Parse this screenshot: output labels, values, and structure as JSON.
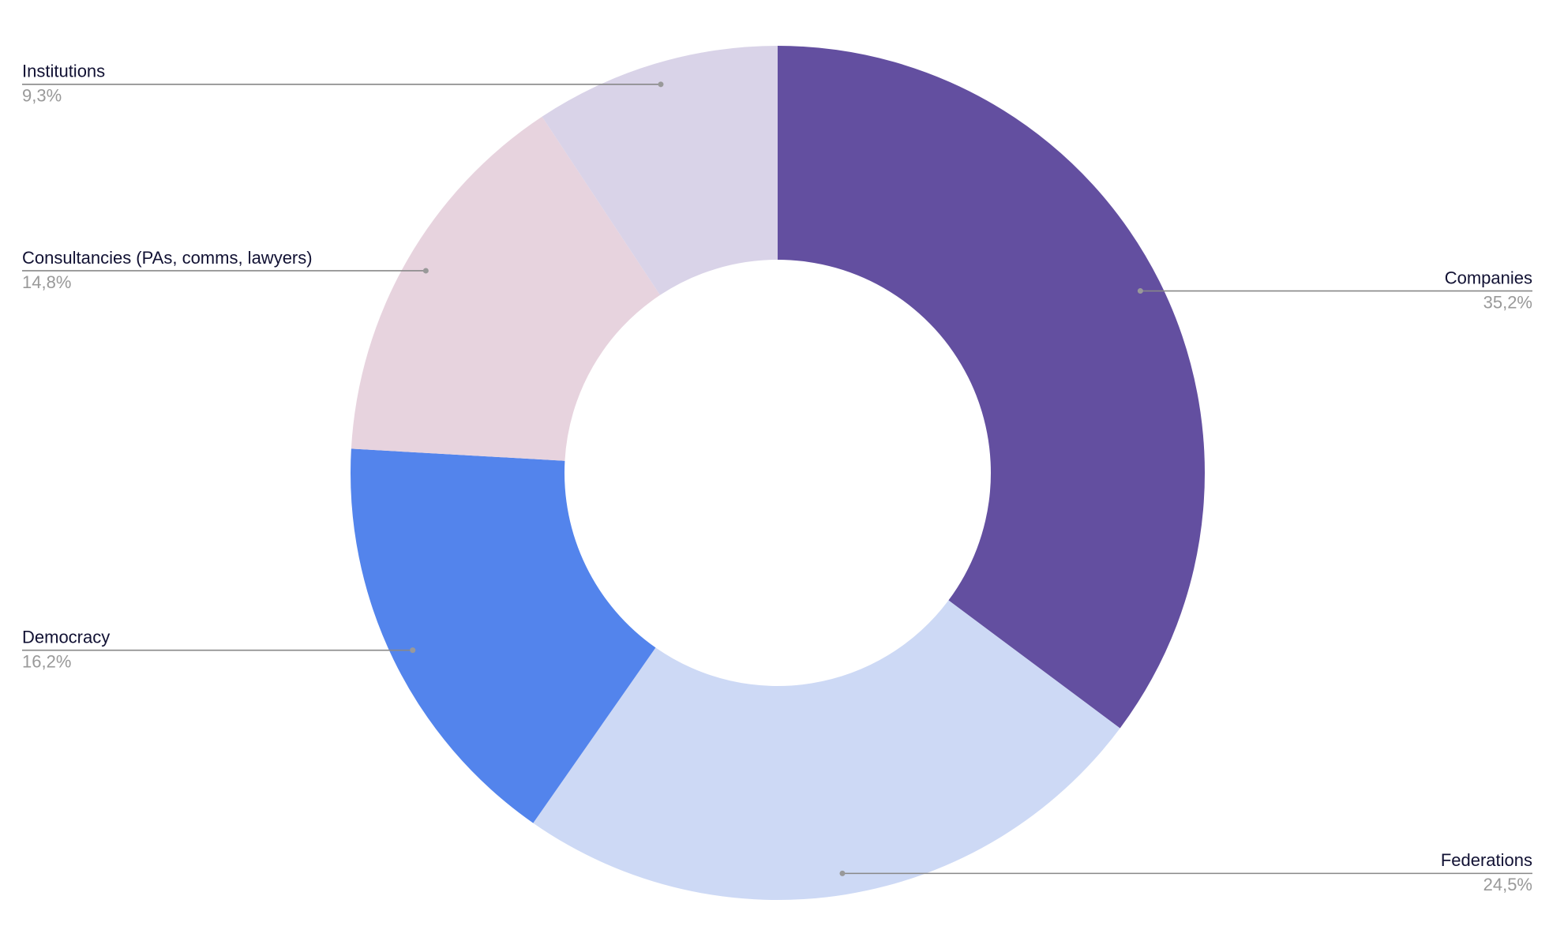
{
  "chart_data": {
    "type": "donut",
    "categories": [
      "Companies",
      "Federations",
      "Democracy",
      "Consultancies (PAs, comms, lawyers)",
      "Institutions"
    ],
    "values": [
      35.2,
      24.5,
      16.2,
      14.8,
      9.3
    ],
    "value_labels": [
      "35,2%",
      "24,5%",
      "16,2%",
      "14,8%",
      "9,3%"
    ],
    "colors": [
      "#634fa0",
      "#cdd9f5",
      "#5384ec",
      "#e7d3de",
      "#d9d3e8"
    ]
  }
}
